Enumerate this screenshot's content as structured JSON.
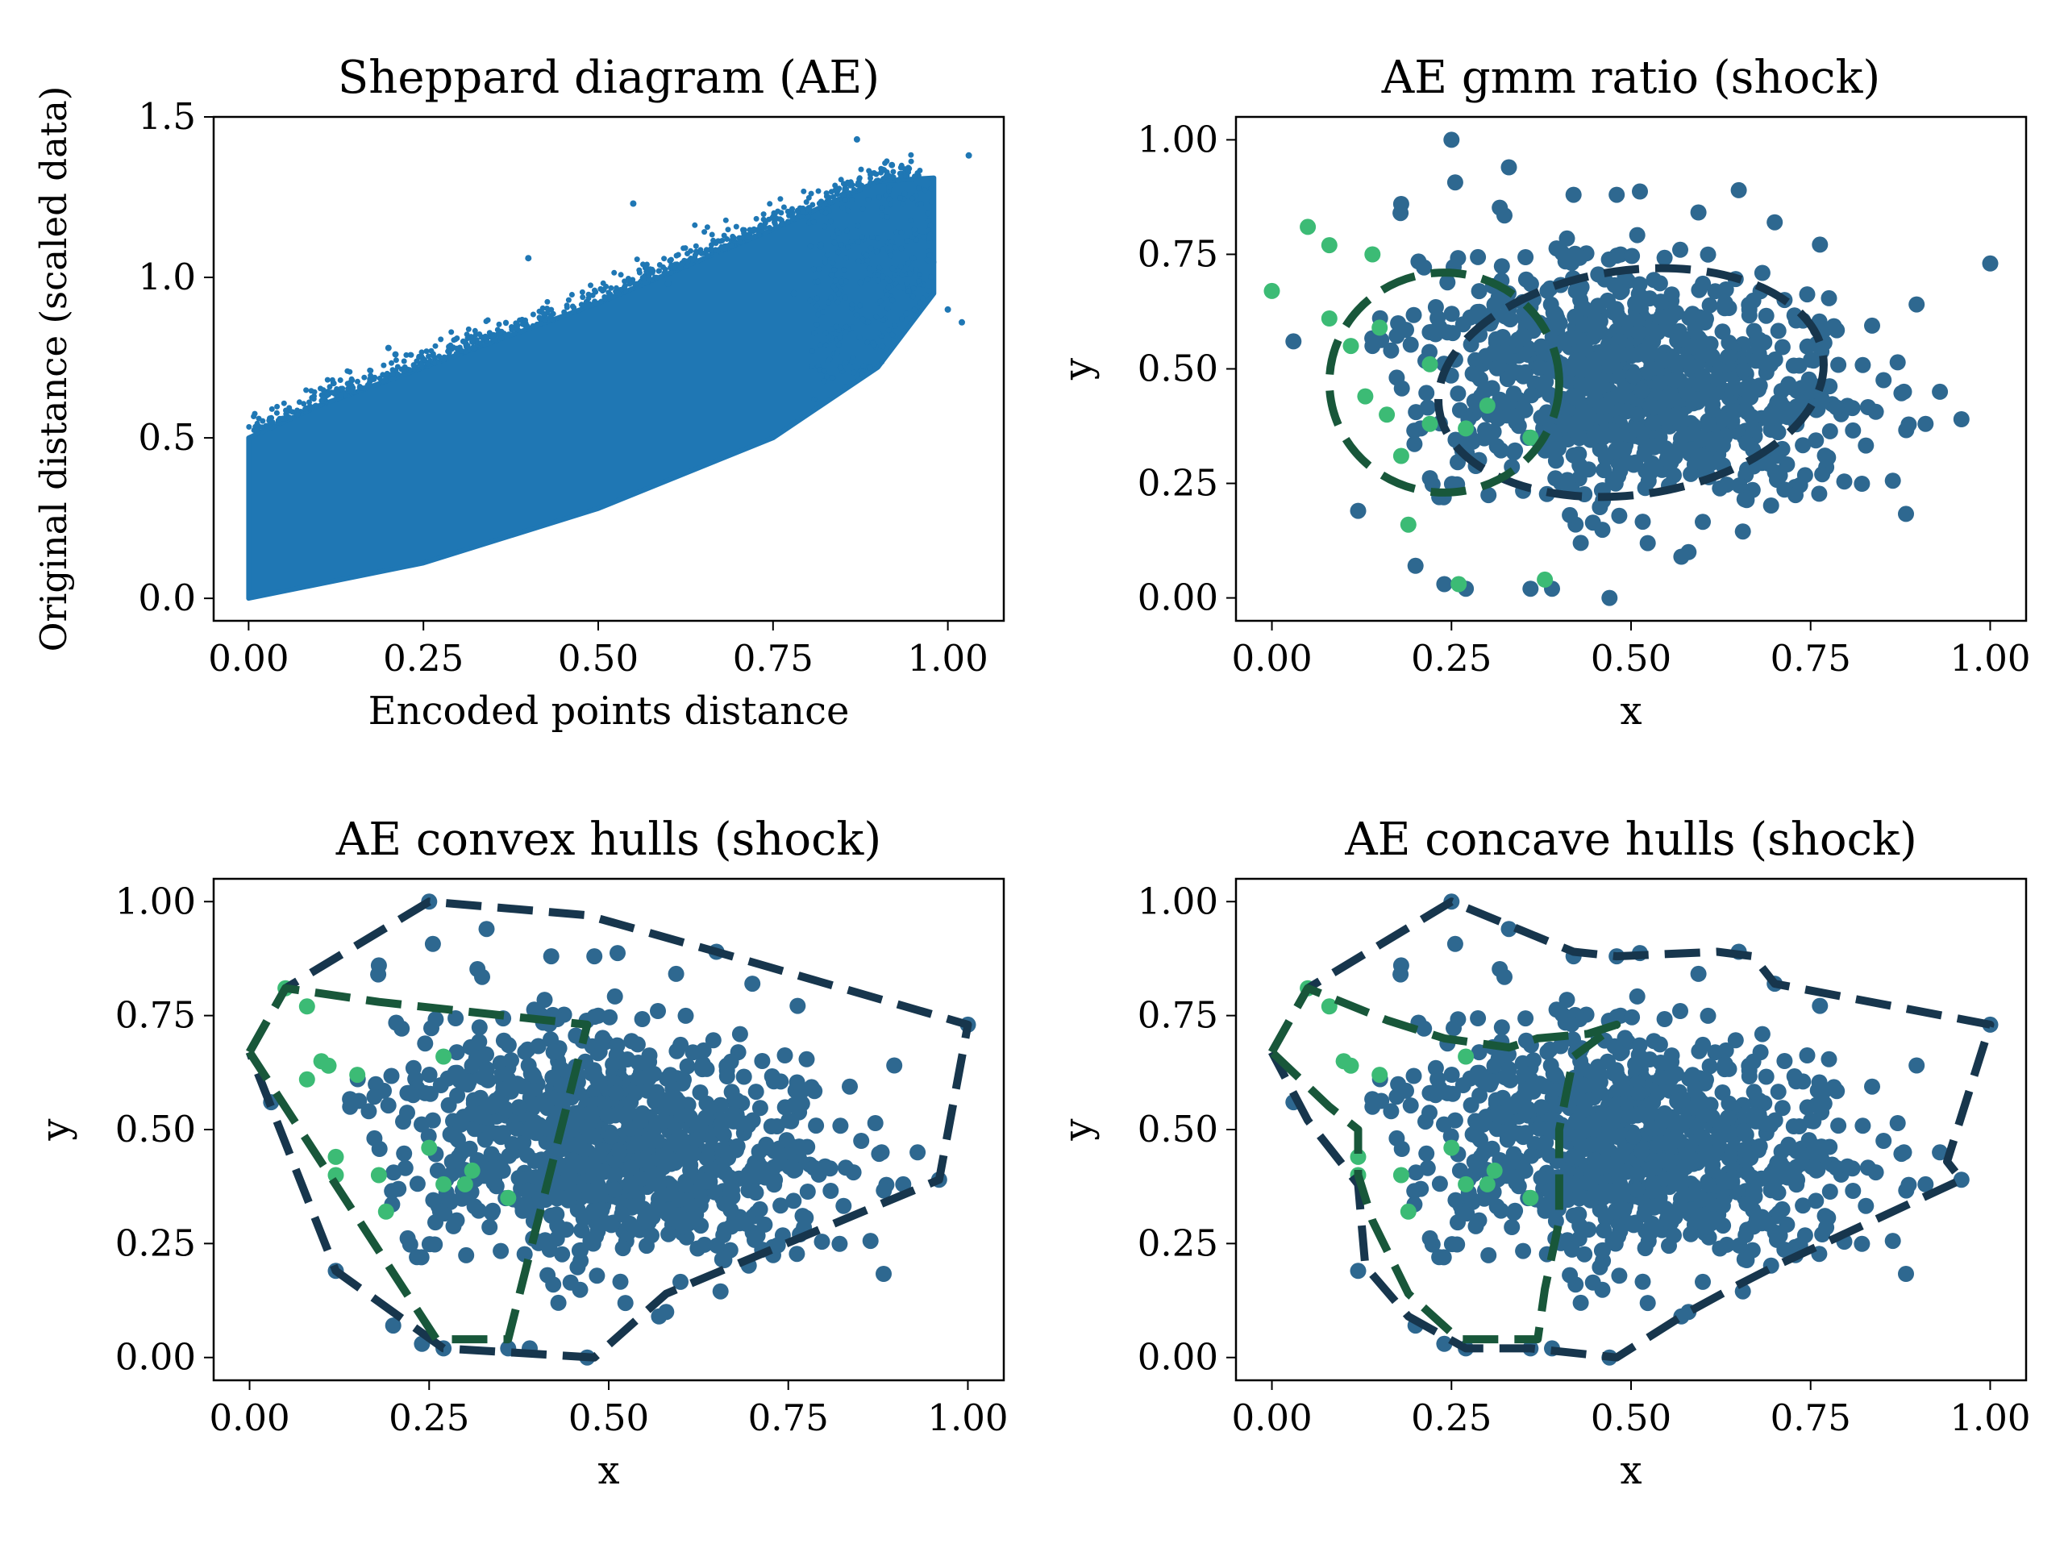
{
  "figure": {
    "point_color": "#1f77b4",
    "cluster_a_color": "#2e6890",
    "cluster_b_color": "#3cbb75",
    "outline_a_color": "#17364d",
    "outline_b_color": "#18573a"
  },
  "chart_data": [
    {
      "id": "sheppard",
      "type": "scatter",
      "title": "Sheppard diagram (AE)",
      "xlabel": "Encoded points distance",
      "ylabel": "Original distance (scaled data)",
      "xlim": [
        -0.05,
        1.08
      ],
      "ylim": [
        -0.07,
        1.5
      ],
      "xticks": [
        0.0,
        0.25,
        0.5,
        0.75,
        1.0
      ],
      "xtick_labels": [
        "0.00",
        "0.25",
        "0.50",
        "0.75",
        "1.00"
      ],
      "yticks": [
        0.0,
        0.5,
        1.0,
        1.5
      ],
      "ytick_labels": [
        "0.0",
        "0.5",
        "1.0",
        "1.5"
      ],
      "band": {
        "lower_edge": [
          [
            0.0,
            0.0
          ],
          [
            0.25,
            0.11
          ],
          [
            0.5,
            0.28
          ],
          [
            0.75,
            0.5
          ],
          [
            0.9,
            0.72
          ],
          [
            0.98,
            0.95
          ]
        ],
        "upper_edge": [
          [
            0.0,
            0.5
          ],
          [
            0.1,
            0.6
          ],
          [
            0.25,
            0.72
          ],
          [
            0.5,
            0.92
          ],
          [
            0.75,
            1.15
          ],
          [
            0.9,
            1.3
          ],
          [
            0.98,
            1.31
          ]
        ],
        "description": "dense monotone band of pairwise distances"
      },
      "outliers": [
        [
          0.87,
          1.43
        ],
        [
          0.92,
          1.35
        ],
        [
          1.03,
          1.38
        ],
        [
          0.55,
          1.23
        ],
        [
          0.4,
          1.06
        ],
        [
          1.02,
          0.86
        ],
        [
          1.0,
          0.9
        ],
        [
          0.95,
          1.06
        ],
        [
          0.78,
          0.95
        ],
        [
          0.6,
          0.98
        ],
        [
          0.35,
          0.82
        ],
        [
          0.32,
          0.8
        ],
        [
          0.2,
          0.78
        ],
        [
          0.21,
          0.76
        ]
      ]
    },
    {
      "id": "gmm",
      "type": "scatter",
      "title": "AE gmm ratio (shock)",
      "xlabel": "x",
      "ylabel": "y",
      "xlim": [
        -0.05,
        1.05
      ],
      "ylim": [
        -0.05,
        1.05
      ],
      "xticks": [
        0.0,
        0.25,
        0.5,
        0.75,
        1.0
      ],
      "xtick_labels": [
        "0.00",
        "0.25",
        "0.50",
        "0.75",
        "1.00"
      ],
      "yticks": [
        0.0,
        0.25,
        0.5,
        0.75,
        1.0
      ],
      "ytick_labels": [
        "0.00",
        "0.25",
        "0.50",
        "0.75",
        "1.00"
      ],
      "series": [
        {
          "name": "cluster A",
          "description": "large central cloud of encoded points, centred near (0.5, 0.47)"
        },
        {
          "name": "cluster B",
          "points": [
            [
              0.0,
              0.67
            ],
            [
              0.05,
              0.81
            ],
            [
              0.08,
              0.77
            ],
            [
              0.08,
              0.61
            ],
            [
              0.14,
              0.75
            ],
            [
              0.13,
              0.44
            ],
            [
              0.11,
              0.55
            ],
            [
              0.15,
              0.59
            ],
            [
              0.16,
              0.4
            ],
            [
              0.18,
              0.31
            ],
            [
              0.19,
              0.16
            ],
            [
              0.22,
              0.38
            ],
            [
              0.22,
              0.51
            ],
            [
              0.27,
              0.37
            ],
            [
              0.3,
              0.42
            ],
            [
              0.36,
              0.35
            ],
            [
              0.26,
              0.03
            ],
            [
              0.38,
              0.04
            ]
          ]
        }
      ],
      "ellipses": [
        {
          "series": "cluster A",
          "center": [
            0.5,
            0.47
          ],
          "width": 0.54,
          "height": 0.49,
          "angle_deg": -8
        },
        {
          "series": "cluster B",
          "center": [
            0.24,
            0.47
          ],
          "width": 0.32,
          "height": 0.48,
          "angle_deg": 0
        }
      ]
    },
    {
      "id": "convex",
      "type": "scatter",
      "title": "AE convex hulls (shock)",
      "xlabel": "x",
      "ylabel": "y",
      "xlim": [
        -0.05,
        1.05
      ],
      "ylim": [
        -0.05,
        1.05
      ],
      "xticks": [
        0.0,
        0.25,
        0.5,
        0.75,
        1.0
      ],
      "xtick_labels": [
        "0.00",
        "0.25",
        "0.50",
        "0.75",
        "1.00"
      ],
      "yticks": [
        0.0,
        0.25,
        0.5,
        0.75,
        1.0
      ],
      "ytick_labels": [
        "0.00",
        "0.25",
        "0.50",
        "0.75",
        "1.00"
      ],
      "series": [
        {
          "name": "cluster A",
          "description": "same encoded points as gmm panel"
        },
        {
          "name": "cluster B",
          "points": [
            [
              0.05,
              0.81
            ],
            [
              0.08,
              0.77
            ],
            [
              0.08,
              0.61
            ],
            [
              0.1,
              0.65
            ],
            [
              0.11,
              0.64
            ],
            [
              0.15,
              0.62
            ],
            [
              0.12,
              0.44
            ],
            [
              0.12,
              0.4
            ],
            [
              0.18,
              0.4
            ],
            [
              0.19,
              0.32
            ],
            [
              0.25,
              0.46
            ],
            [
              0.27,
              0.66
            ],
            [
              0.27,
              0.38
            ],
            [
              0.3,
              0.38
            ],
            [
              0.36,
              0.35
            ],
            [
              0.31,
              0.41
            ]
          ]
        }
      ],
      "hulls": [
        {
          "series": "cluster A",
          "vertices": [
            [
              0.0,
              0.67
            ],
            [
              0.05,
              0.81
            ],
            [
              0.25,
              1.0
            ],
            [
              0.47,
              0.97
            ],
            [
              0.65,
              0.89
            ],
            [
              1.0,
              0.73
            ],
            [
              0.96,
              0.39
            ],
            [
              0.58,
              0.14
            ],
            [
              0.48,
              0.0
            ],
            [
              0.27,
              0.02
            ],
            [
              0.12,
              0.19
            ],
            [
              0.0,
              0.67
            ]
          ]
        },
        {
          "series": "cluster B",
          "vertices": [
            [
              0.0,
              0.67
            ],
            [
              0.05,
              0.81
            ],
            [
              0.18,
              0.78
            ],
            [
              0.47,
              0.73
            ],
            [
              0.36,
              0.04
            ],
            [
              0.26,
              0.04
            ],
            [
              0.0,
              0.67
            ]
          ]
        }
      ]
    },
    {
      "id": "concave",
      "type": "scatter",
      "title": "AE concave hulls (shock)",
      "xlabel": "x",
      "ylabel": "y",
      "xlim": [
        -0.05,
        1.05
      ],
      "ylim": [
        -0.05,
        1.05
      ],
      "xticks": [
        0.0,
        0.25,
        0.5,
        0.75,
        1.0
      ],
      "xtick_labels": [
        "0.00",
        "0.25",
        "0.50",
        "0.75",
        "1.00"
      ],
      "yticks": [
        0.0,
        0.25,
        0.5,
        0.75,
        1.0
      ],
      "ytick_labels": [
        "0.00",
        "0.25",
        "0.50",
        "0.75",
        "1.00"
      ],
      "series": [
        {
          "name": "cluster A",
          "description": "same encoded points as gmm panel"
        },
        {
          "name": "cluster B",
          "points": [
            [
              0.05,
              0.81
            ],
            [
              0.08,
              0.77
            ],
            [
              0.1,
              0.65
            ],
            [
              0.11,
              0.64
            ],
            [
              0.15,
              0.62
            ],
            [
              0.12,
              0.44
            ],
            [
              0.12,
              0.4
            ],
            [
              0.18,
              0.4
            ],
            [
              0.19,
              0.32
            ],
            [
              0.25,
              0.46
            ],
            [
              0.27,
              0.66
            ],
            [
              0.27,
              0.38
            ],
            [
              0.3,
              0.38
            ],
            [
              0.36,
              0.35
            ],
            [
              0.31,
              0.41
            ]
          ]
        }
      ],
      "hulls": [
        {
          "series": "cluster A",
          "vertices": [
            [
              0.0,
              0.67
            ],
            [
              0.05,
              0.81
            ],
            [
              0.25,
              1.0
            ],
            [
              0.42,
              0.89
            ],
            [
              0.48,
              0.88
            ],
            [
              0.62,
              0.89
            ],
            [
              0.67,
              0.88
            ],
            [
              0.7,
              0.82
            ],
            [
              1.0,
              0.73
            ],
            [
              0.94,
              0.43
            ],
            [
              0.96,
              0.39
            ],
            [
              0.7,
              0.2
            ],
            [
              0.65,
              0.16
            ],
            [
              0.58,
              0.1
            ],
            [
              0.48,
              0.0
            ],
            [
              0.36,
              0.02
            ],
            [
              0.27,
              0.02
            ],
            [
              0.19,
              0.09
            ],
            [
              0.13,
              0.2
            ],
            [
              0.12,
              0.38
            ],
            [
              0.05,
              0.52
            ],
            [
              0.0,
              0.67
            ]
          ]
        },
        {
          "series": "cluster B",
          "vertices": [
            [
              0.0,
              0.67
            ],
            [
              0.05,
              0.81
            ],
            [
              0.16,
              0.74
            ],
            [
              0.24,
              0.7
            ],
            [
              0.33,
              0.68
            ],
            [
              0.37,
              0.7
            ],
            [
              0.44,
              0.71
            ],
            [
              0.48,
              0.73
            ],
            [
              0.42,
              0.66
            ],
            [
              0.4,
              0.5
            ],
            [
              0.4,
              0.3
            ],
            [
              0.38,
              0.15
            ],
            [
              0.37,
              0.04
            ],
            [
              0.26,
              0.04
            ],
            [
              0.19,
              0.14
            ],
            [
              0.14,
              0.3
            ],
            [
              0.12,
              0.4
            ],
            [
              0.12,
              0.5
            ],
            [
              0.08,
              0.55
            ],
            [
              0.0,
              0.67
            ]
          ]
        }
      ]
    }
  ]
}
